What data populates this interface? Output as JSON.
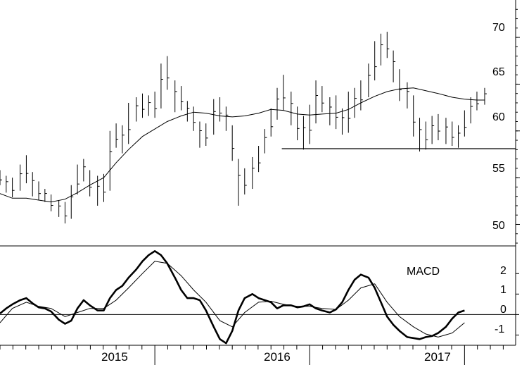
{
  "chart_data": [
    {
      "type": "line",
      "panel": "price",
      "title": "",
      "xlabel": "",
      "ylabel": "",
      "xlim": [
        2014.0,
        2017.33
      ],
      "ylim": [
        47.7,
        74.0
      ],
      "y_ticks": [
        "50",
        "55",
        "60",
        "65",
        "70"
      ],
      "x_ticks": [
        "2015",
        "2016",
        "2017"
      ],
      "grid": false,
      "support_level": {
        "value": 58.1,
        "from": 2015.82,
        "to": 2017.33
      },
      "series": [
        {
          "style": "ohlc-bars",
          "points": [
            [
              2014.0,
              54.2,
              55.8
            ],
            [
              2014.04,
              53.4,
              55.2
            ],
            [
              2014.08,
              52.9,
              55.0
            ],
            [
              2014.13,
              53.6,
              56.4
            ],
            [
              2014.17,
              54.4,
              57.4
            ],
            [
              2014.21,
              53.0,
              55.6
            ],
            [
              2014.25,
              52.6,
              54.6
            ],
            [
              2014.29,
              52.4,
              53.8
            ],
            [
              2014.33,
              51.4,
              53.2
            ],
            [
              2014.38,
              50.8,
              52.6
            ],
            [
              2014.42,
              50.1,
              52.4
            ],
            [
              2014.46,
              50.6,
              54.2
            ],
            [
              2014.5,
              53.2,
              56.4
            ],
            [
              2014.54,
              54.6,
              57.0
            ],
            [
              2014.58,
              53.0,
              55.8
            ],
            [
              2014.63,
              52.0,
              55.2
            ],
            [
              2014.67,
              52.4,
              55.4
            ],
            [
              2014.71,
              53.6,
              60.0
            ],
            [
              2014.75,
              58.2,
              60.8
            ],
            [
              2014.79,
              57.6,
              60.6
            ],
            [
              2014.83,
              58.6,
              63.0
            ],
            [
              2014.88,
              61.0,
              63.6
            ],
            [
              2014.92,
              61.4,
              64.0
            ],
            [
              2014.96,
              61.6,
              63.8
            ],
            [
              2015.0,
              61.4,
              64.2
            ],
            [
              2015.04,
              62.4,
              67.2
            ],
            [
              2015.08,
              64.4,
              68.0
            ],
            [
              2015.13,
              62.0,
              65.4
            ],
            [
              2015.17,
              62.2,
              64.8
            ],
            [
              2015.21,
              61.0,
              63.2
            ],
            [
              2015.25,
              60.0,
              62.6
            ],
            [
              2015.29,
              58.2,
              61.0
            ],
            [
              2015.33,
              58.4,
              60.8
            ],
            [
              2015.38,
              59.6,
              63.4
            ],
            [
              2015.42,
              61.0,
              63.6
            ],
            [
              2015.46,
              60.0,
              62.6
            ],
            [
              2015.5,
              56.8,
              60.6
            ],
            [
              2015.54,
              52.0,
              57.0
            ],
            [
              2015.58,
              53.2,
              56.0
            ],
            [
              2015.63,
              53.8,
              57.2
            ],
            [
              2015.67,
              55.6,
              58.4
            ],
            [
              2015.71,
              57.6,
              60.2
            ],
            [
              2015.75,
              59.4,
              62.4
            ],
            [
              2015.79,
              61.2,
              64.6
            ],
            [
              2015.83,
              62.2,
              66.0
            ],
            [
              2015.88,
              60.6,
              64.2
            ],
            [
              2015.92,
              59.0,
              62.6
            ],
            [
              2015.96,
              58.0,
              61.6
            ],
            [
              2016.0,
              58.6,
              62.8
            ],
            [
              2016.04,
              60.8,
              65.4
            ],
            [
              2016.08,
              62.0,
              64.8
            ],
            [
              2016.13,
              60.6,
              63.6
            ],
            [
              2016.17,
              60.2,
              63.8
            ],
            [
              2016.21,
              59.6,
              62.4
            ],
            [
              2016.25,
              59.8,
              64.2
            ],
            [
              2016.29,
              61.4,
              64.6
            ],
            [
              2016.33,
              62.2,
              65.4
            ],
            [
              2016.38,
              63.6,
              67.2
            ],
            [
              2016.42,
              65.4,
              69.6
            ],
            [
              2016.46,
              67.0,
              70.4
            ],
            [
              2016.5,
              67.8,
              70.6
            ],
            [
              2016.54,
              65.2,
              68.6
            ],
            [
              2016.58,
              63.2,
              66.6
            ],
            [
              2016.63,
              62.4,
              65.2
            ],
            [
              2016.67,
              59.4,
              63.8
            ],
            [
              2016.71,
              57.8,
              61.4
            ],
            [
              2016.75,
              58.0,
              61.0
            ],
            [
              2016.79,
              58.6,
              61.6
            ],
            [
              2016.83,
              59.0,
              61.8
            ],
            [
              2016.88,
              58.6,
              61.4
            ],
            [
              2016.92,
              58.4,
              61.0
            ],
            [
              2016.96,
              58.2,
              60.6
            ],
            [
              2017.0,
              59.4,
              62.2
            ],
            [
              2017.04,
              60.8,
              63.6
            ],
            [
              2017.08,
              62.2,
              64.2
            ],
            [
              2017.13,
              62.8,
              64.6
            ]
          ]
        },
        {
          "style": "moving-average",
          "points": [
            [
              2014.0,
              53.3
            ],
            [
              2014.08,
              52.8
            ],
            [
              2014.17,
              52.8
            ],
            [
              2014.25,
              52.6
            ],
            [
              2014.33,
              52.4
            ],
            [
              2014.42,
              52.7
            ],
            [
              2014.5,
              53.4
            ],
            [
              2014.58,
              54.2
            ],
            [
              2014.67,
              55.0
            ],
            [
              2014.75,
              56.6
            ],
            [
              2014.83,
              58.0
            ],
            [
              2014.92,
              59.4
            ],
            [
              2015.0,
              60.2
            ],
            [
              2015.08,
              61.0
            ],
            [
              2015.17,
              61.6
            ],
            [
              2015.25,
              62.0
            ],
            [
              2015.33,
              61.9
            ],
            [
              2015.42,
              61.6
            ],
            [
              2015.5,
              61.5
            ],
            [
              2015.58,
              61.6
            ],
            [
              2015.67,
              61.9
            ],
            [
              2015.75,
              62.3
            ],
            [
              2015.83,
              62.2
            ],
            [
              2015.92,
              61.8
            ],
            [
              2016.0,
              61.7
            ],
            [
              2016.08,
              61.8
            ],
            [
              2016.17,
              61.9
            ],
            [
              2016.25,
              62.3
            ],
            [
              2016.33,
              63.0
            ],
            [
              2016.42,
              63.7
            ],
            [
              2016.5,
              64.2
            ],
            [
              2016.58,
              64.5
            ],
            [
              2016.67,
              64.6
            ],
            [
              2016.75,
              64.3
            ],
            [
              2016.83,
              64.0
            ],
            [
              2016.92,
              63.6
            ],
            [
              2017.0,
              63.4
            ],
            [
              2017.08,
              63.3
            ],
            [
              2017.13,
              63.3
            ]
          ]
        }
      ]
    },
    {
      "type": "line",
      "panel": "indicator",
      "title": "MACD",
      "xlabel": "",
      "ylabel": "",
      "xlim": [
        2014.0,
        2017.33
      ],
      "ylim": [
        -1.5,
        3.35
      ],
      "y_ticks": [
        "-1",
        "0",
        "1",
        "2"
      ],
      "zero_line": true,
      "series": [
        {
          "style": "macd-line",
          "points": [
            [
              2014.0,
              0.05
            ],
            [
              2014.04,
              0.3
            ],
            [
              2014.08,
              0.5
            ],
            [
              2014.13,
              0.7
            ],
            [
              2014.17,
              0.8
            ],
            [
              2014.21,
              0.55
            ],
            [
              2014.25,
              0.35
            ],
            [
              2014.29,
              0.3
            ],
            [
              2014.33,
              0.15
            ],
            [
              2014.38,
              -0.25
            ],
            [
              2014.42,
              -0.45
            ],
            [
              2014.46,
              -0.3
            ],
            [
              2014.5,
              0.3
            ],
            [
              2014.54,
              0.7
            ],
            [
              2014.58,
              0.45
            ],
            [
              2014.63,
              0.2
            ],
            [
              2014.67,
              0.2
            ],
            [
              2014.71,
              0.8
            ],
            [
              2014.75,
              1.2
            ],
            [
              2014.79,
              1.4
            ],
            [
              2014.83,
              1.8
            ],
            [
              2014.88,
              2.2
            ],
            [
              2014.92,
              2.6
            ],
            [
              2014.96,
              2.9
            ],
            [
              2015.0,
              3.1
            ],
            [
              2015.04,
              2.9
            ],
            [
              2015.08,
              2.5
            ],
            [
              2015.13,
              1.8
            ],
            [
              2015.17,
              1.2
            ],
            [
              2015.21,
              0.8
            ],
            [
              2015.25,
              0.8
            ],
            [
              2015.29,
              0.7
            ],
            [
              2015.33,
              0.2
            ],
            [
              2015.38,
              -0.6
            ],
            [
              2015.42,
              -1.2
            ],
            [
              2015.46,
              -1.4
            ],
            [
              2015.5,
              -0.8
            ],
            [
              2015.54,
              0.2
            ],
            [
              2015.58,
              0.8
            ],
            [
              2015.63,
              1.0
            ],
            [
              2015.67,
              0.8
            ],
            [
              2015.71,
              0.7
            ],
            [
              2015.75,
              0.6
            ],
            [
              2015.79,
              0.3
            ],
            [
              2015.83,
              0.45
            ],
            [
              2015.88,
              0.45
            ],
            [
              2015.92,
              0.35
            ],
            [
              2015.96,
              0.4
            ],
            [
              2016.0,
              0.5
            ],
            [
              2016.04,
              0.3
            ],
            [
              2016.08,
              0.2
            ],
            [
              2016.13,
              0.1
            ],
            [
              2016.17,
              0.25
            ],
            [
              2016.21,
              0.6
            ],
            [
              2016.25,
              1.2
            ],
            [
              2016.29,
              1.7
            ],
            [
              2016.33,
              1.95
            ],
            [
              2016.38,
              1.8
            ],
            [
              2016.42,
              1.3
            ],
            [
              2016.46,
              0.6
            ],
            [
              2016.5,
              -0.1
            ],
            [
              2016.54,
              -0.5
            ],
            [
              2016.58,
              -0.8
            ],
            [
              2016.63,
              -1.1
            ],
            [
              2016.67,
              -1.15
            ],
            [
              2016.71,
              -1.2
            ],
            [
              2016.75,
              -1.1
            ],
            [
              2016.79,
              -1.05
            ],
            [
              2016.83,
              -0.9
            ],
            [
              2016.88,
              -0.6
            ],
            [
              2016.92,
              -0.2
            ],
            [
              2016.96,
              0.1
            ],
            [
              2017.0,
              0.2
            ]
          ]
        },
        {
          "style": "signal-line",
          "points": [
            [
              2014.0,
              -0.4
            ],
            [
              2014.08,
              0.3
            ],
            [
              2014.17,
              0.6
            ],
            [
              2014.25,
              0.4
            ],
            [
              2014.33,
              0.3
            ],
            [
              2014.42,
              -0.1
            ],
            [
              2014.5,
              0.1
            ],
            [
              2014.58,
              0.3
            ],
            [
              2014.67,
              0.3
            ],
            [
              2014.75,
              0.7
            ],
            [
              2014.83,
              1.3
            ],
            [
              2014.92,
              2.0
            ],
            [
              2015.0,
              2.6
            ],
            [
              2015.08,
              2.5
            ],
            [
              2015.17,
              1.9
            ],
            [
              2015.25,
              1.2
            ],
            [
              2015.33,
              0.6
            ],
            [
              2015.42,
              -0.3
            ],
            [
              2015.5,
              -0.6
            ],
            [
              2015.58,
              0.1
            ],
            [
              2015.67,
              0.6
            ],
            [
              2015.75,
              0.65
            ],
            [
              2015.83,
              0.5
            ],
            [
              2015.92,
              0.4
            ],
            [
              2016.0,
              0.4
            ],
            [
              2016.08,
              0.3
            ],
            [
              2016.17,
              0.25
            ],
            [
              2016.25,
              0.7
            ],
            [
              2016.33,
              1.3
            ],
            [
              2016.42,
              1.5
            ],
            [
              2016.5,
              0.6
            ],
            [
              2016.58,
              -0.1
            ],
            [
              2016.67,
              -0.6
            ],
            [
              2016.75,
              -0.95
            ],
            [
              2016.83,
              -1.1
            ],
            [
              2016.92,
              -0.9
            ],
            [
              2017.0,
              -0.4
            ]
          ]
        }
      ]
    }
  ]
}
